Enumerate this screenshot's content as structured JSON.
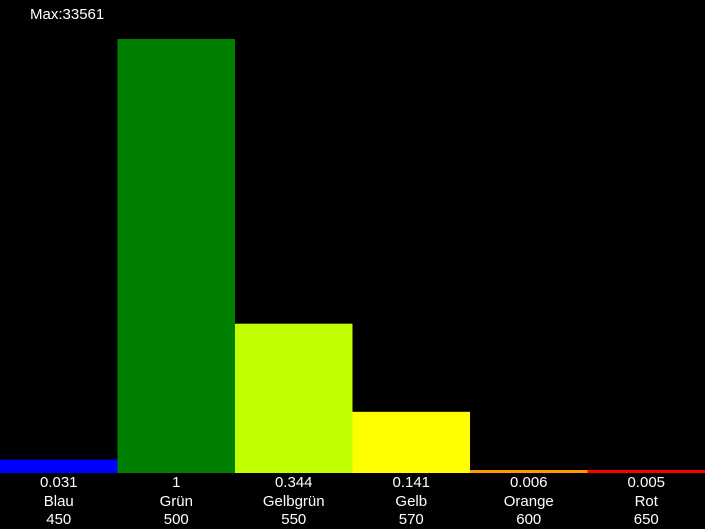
{
  "chart_data": {
    "type": "bar",
    "max_label": "Max:33561",
    "categories": [
      "Blau",
      "Grün",
      "Gelbgrün",
      "Gelb",
      "Orange",
      "Rot"
    ],
    "wavelengths": [
      "450",
      "500",
      "550",
      "570",
      "600",
      "650"
    ],
    "values": [
      0.031,
      1,
      0.344,
      0.141,
      0.006,
      0.005
    ],
    "value_labels": [
      "0.031",
      "1",
      "0.344",
      "0.141",
      "0.006",
      "0.005"
    ],
    "colors": [
      "#0000ff",
      "#008000",
      "#bfff00",
      "#ffff00",
      "#ff9900",
      "#ff0000"
    ],
    "ylim": [
      0,
      1
    ],
    "grid": false,
    "background": "#000000",
    "text_color": "#ffffff"
  }
}
